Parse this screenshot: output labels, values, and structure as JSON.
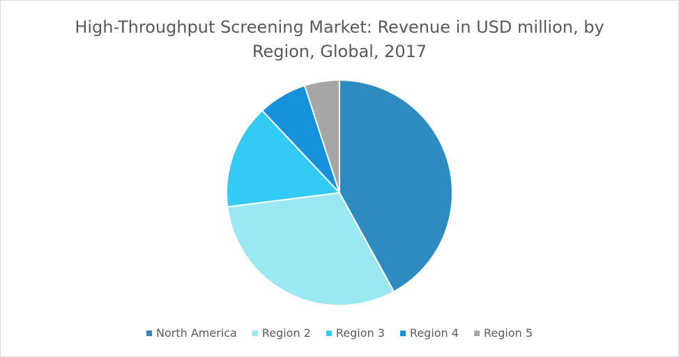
{
  "chart_data": {
    "type": "pie",
    "title": "High-Throughput Screening Market: Revenue in USD million, by Region, Global, 2017",
    "title_lines": [
      "High-Throughput Screening Market: Revenue in USD million, by",
      "Region, Global, 2017"
    ],
    "categories": [
      "North America",
      "Region 2",
      "Region 3",
      "Region 4",
      "Region 5"
    ],
    "values": [
      42,
      31,
      15,
      7,
      5
    ],
    "colors": [
      "#2e8bbf",
      "#9ae8f2",
      "#33cbf5",
      "#1592db",
      "#a6a6a6"
    ],
    "legend_position": "bottom",
    "start_angle": "12 o'clock, clockwise",
    "data_labels": false
  }
}
